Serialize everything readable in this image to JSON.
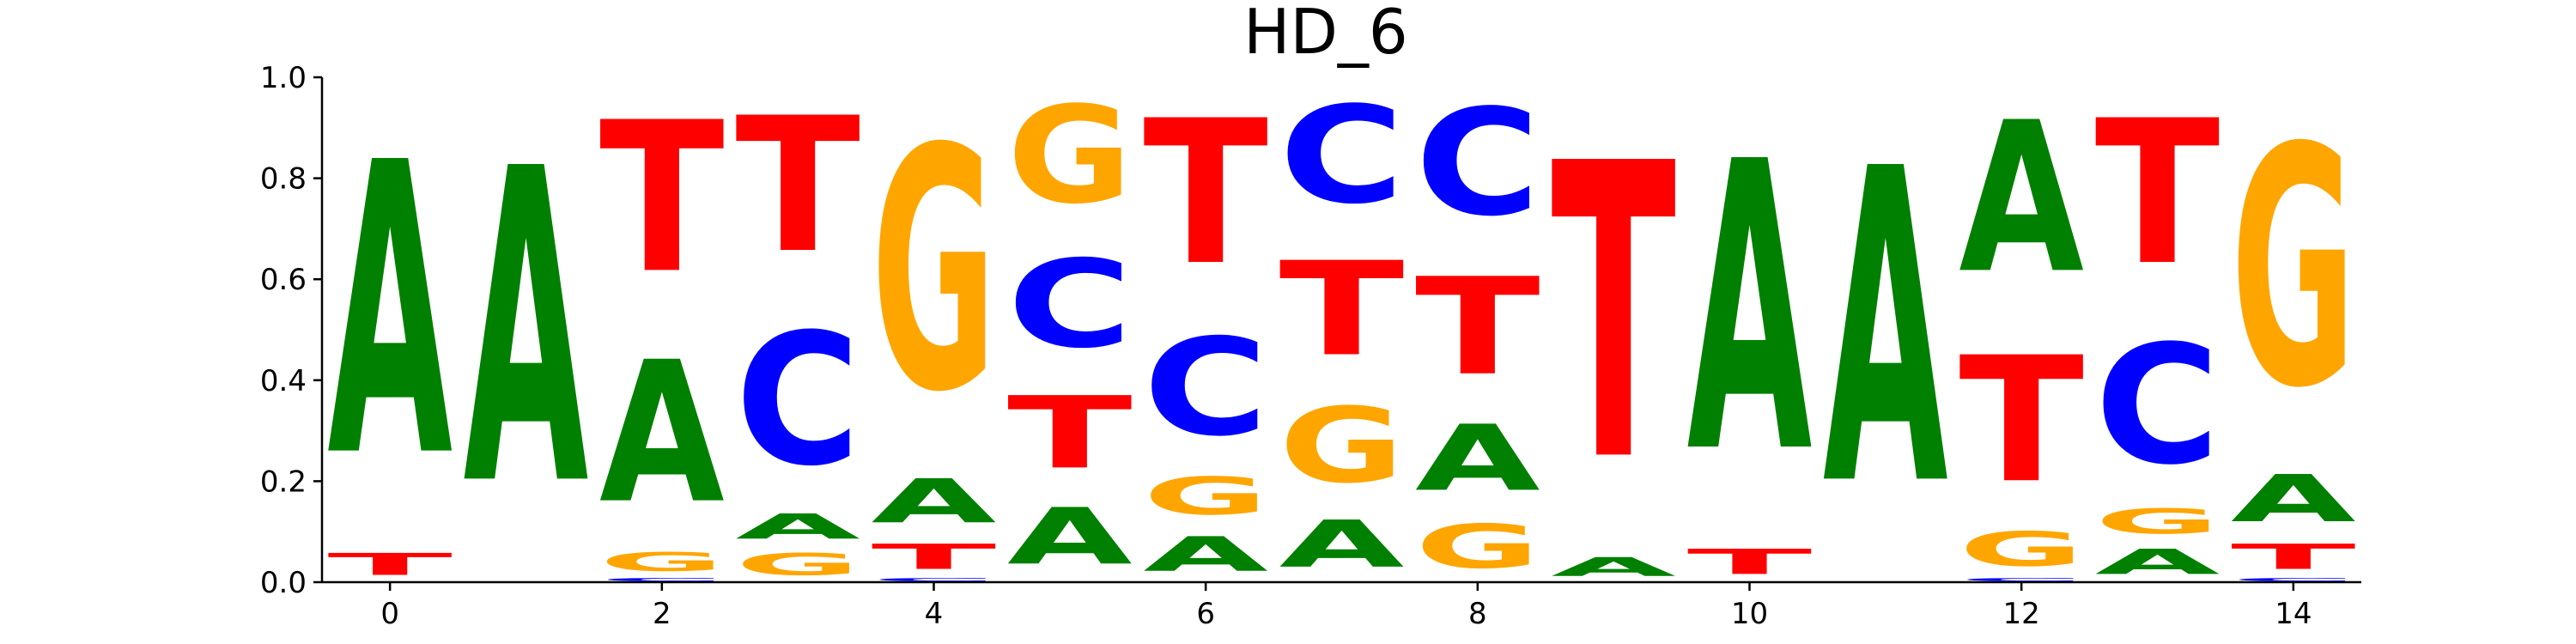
{
  "chart_data": {
    "type": "sequence-logo",
    "title": "HD_6",
    "xlabel": "",
    "ylabel": "",
    "ylim": [
      0,
      1
    ],
    "y_ticks": [
      "0.0",
      "0.2",
      "0.4",
      "0.6",
      "0.8",
      "1.0"
    ],
    "x_ticks": [
      "0",
      "2",
      "4",
      "6",
      "8",
      "10",
      "12",
      "14"
    ],
    "letter_colors": {
      "A": "#008000",
      "C": "#0000ff",
      "G": "#ffa500",
      "T": "#ff0000"
    },
    "positions": [
      {
        "x": 0,
        "A": 0.93,
        "C": 0.0,
        "G": 0.0,
        "T": 0.07
      },
      {
        "x": 1,
        "A": 1.0,
        "C": 0.0,
        "G": 0.0,
        "T": 0.0
      },
      {
        "x": 2,
        "A": 0.45,
        "C": 0.01,
        "G": 0.06,
        "T": 0.48
      },
      {
        "x": 3,
        "A": 0.08,
        "C": 0.42,
        "G": 0.07,
        "T": 0.43
      },
      {
        "x": 4,
        "A": 0.14,
        "C": 0.01,
        "G": 0.77,
        "T": 0.08
      },
      {
        "x": 5,
        "A": 0.18,
        "C": 0.28,
        "G": 0.31,
        "T": 0.23
      },
      {
        "x": 6,
        "A": 0.11,
        "C": 0.31,
        "G": 0.12,
        "T": 0.46
      },
      {
        "x": 7,
        "A": 0.15,
        "C": 0.31,
        "G": 0.24,
        "T": 0.3
      },
      {
        "x": 8,
        "A": 0.21,
        "C": 0.34,
        "G": 0.14,
        "T": 0.31
      },
      {
        "x": 9,
        "A": 0.06,
        "C": 0.0,
        "G": 0.0,
        "T": 0.94
      },
      {
        "x": 10,
        "A": 0.92,
        "C": 0.0,
        "G": 0.0,
        "T": 0.08
      },
      {
        "x": 11,
        "A": 1.0,
        "C": 0.0,
        "G": 0.0,
        "T": 0.0
      },
      {
        "x": 12,
        "A": 0.48,
        "C": 0.01,
        "G": 0.11,
        "T": 0.4
      },
      {
        "x": 13,
        "A": 0.08,
        "C": 0.38,
        "G": 0.08,
        "T": 0.46
      },
      {
        "x": 14,
        "A": 0.15,
        "C": 0.01,
        "G": 0.76,
        "T": 0.08
      }
    ]
  }
}
